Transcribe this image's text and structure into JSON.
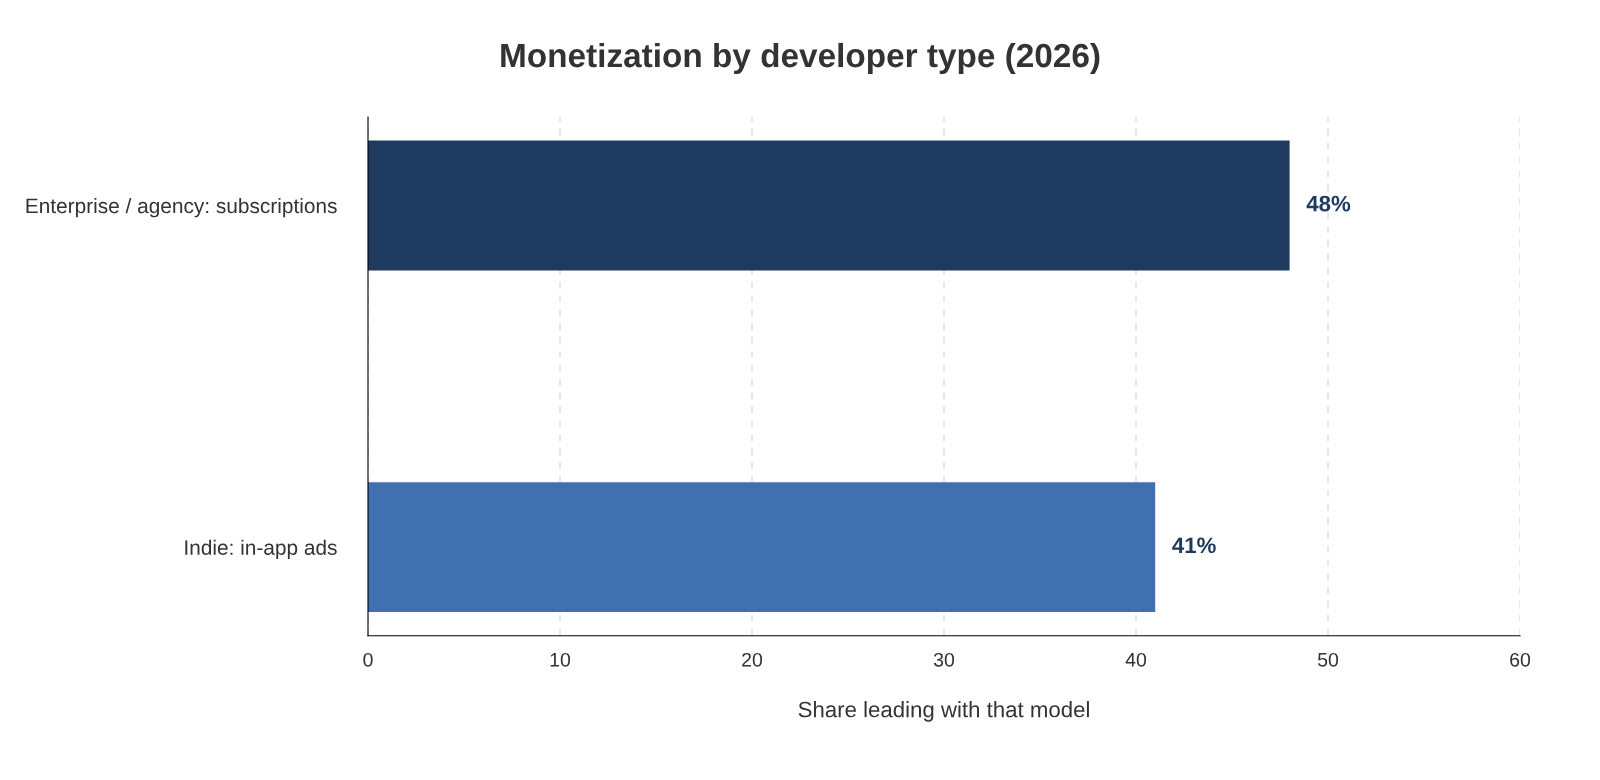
{
  "chart_data": {
    "type": "bar",
    "orientation": "horizontal",
    "title": "Monetization by developer type (2026)",
    "xlabel": "Share leading with that model",
    "categories": [
      "Enterprise / agency: subscriptions",
      "Indie: in-app ads"
    ],
    "values": [
      48,
      41
    ],
    "colors": [
      "#1f3a5f",
      "#4170b0"
    ],
    "value_labels": [
      "48%",
      "41%"
    ],
    "xlim": [
      0,
      60
    ],
    "xticks": [
      0,
      10,
      20,
      30,
      40,
      50,
      60
    ],
    "grid": "x",
    "legend": false
  }
}
